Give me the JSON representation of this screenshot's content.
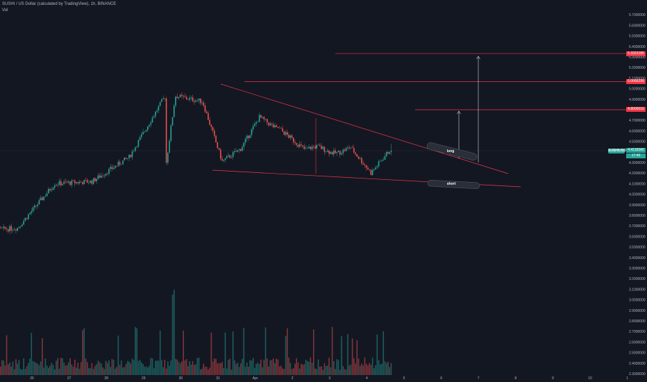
{
  "header": {
    "title": "SUSHI / US Dollar (calculated by TradingView), 1h, BINANCE",
    "sublabel": "Vol"
  },
  "colors": {
    "background": "#131722",
    "bull": "#26a69a",
    "bear": "#ef5350",
    "line": "#f23645",
    "text": "#b2b5be"
  },
  "price_axis": {
    "ticks": [
      "5.7000000",
      "5.6000000",
      "5.5000000",
      "5.4000000",
      "5.3000000",
      "5.2000000",
      "5.1000000",
      "5.0000000",
      "4.9000000",
      "4.7000000",
      "4.6000000",
      "4.5000000",
      "4.3000000",
      "4.2000000",
      "4.1000000",
      "4.0000000",
      "3.9000000",
      "3.8000000",
      "3.7000000",
      "3.6000000",
      "3.5000000",
      "3.4000000",
      "3.3000000",
      "3.2000000",
      "3.1000000",
      "3.0000000",
      "2.9000000",
      "2.8000000",
      "2.7000000",
      "2.6000000",
      "2.5000000",
      "2.4000000",
      "2.3000000"
    ],
    "labels": [
      {
        "text": "5.3323185",
        "kind": "red",
        "value": 5.3323185
      },
      {
        "text": "5.0666299",
        "kind": "red",
        "value": 5.0666299
      },
      {
        "text": "4.8000016",
        "kind": "red",
        "value": 4.8000016
      },
      {
        "text": "4.4118340",
        "kind": "teal",
        "value": 4.411834
      }
    ],
    "symbol_tag": "SUSHIUSD",
    "countdown": "17:46"
  },
  "time_axis": {
    "labels": [
      "26",
      "27",
      "28",
      "29",
      "30",
      "31",
      "Apr",
      "2",
      "3",
      "4",
      "5",
      "6",
      "7",
      "8",
      "9",
      "10",
      "1"
    ]
  },
  "annotations": {
    "long": "long",
    "short": "short"
  },
  "chart_data": {
    "type": "candlestick",
    "series_up_color": "#26a69a",
    "series_down_color": "#ef5350",
    "last_price": 4.411834,
    "levels": [
      5.3323185,
      5.0666299,
      4.8000016
    ],
    "key_points": [
      {
        "x": "26",
        "close": 3.65
      },
      {
        "x": "27",
        "close": 3.68
      },
      {
        "x": "28",
        "close": 4.1
      },
      {
        "x": "29",
        "close": 4.12
      },
      {
        "x": "30",
        "close": 4.35
      },
      {
        "x": "31",
        "close": 4.95
      },
      {
        "x": "Apr",
        "close": 4.32
      },
      {
        "x": "2",
        "close": 4.72
      },
      {
        "x": "3",
        "close": 4.45
      },
      {
        "x": "4",
        "close": 4.43
      },
      {
        "x": "5",
        "close": 4.41
      }
    ],
    "pattern": "descending wedge"
  }
}
